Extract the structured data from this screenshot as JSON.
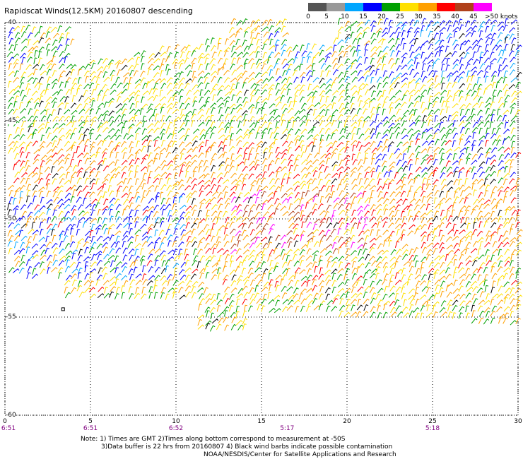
{
  "title": "Rapidscat Winds(12.5KM) 20160807 descending",
  "legend": {
    "labels": [
      "0",
      "5",
      "10",
      "15",
      "20",
      "25",
      "30",
      "35",
      "40",
      "45",
      ">50 knots"
    ],
    "colors": [
      "#555555",
      "#999999",
      "#00a6ff",
      "#0000ff",
      "#00a000",
      "#ffe000",
      "#ffa000",
      "#ff0000",
      "#b0401a",
      "#ff00ff",
      "#8a00b0"
    ]
  },
  "axes": {
    "lon_ticks": [
      "0",
      "5",
      "10",
      "15",
      "20",
      "25",
      "30"
    ],
    "lat_ticks": [
      "-40",
      "-45",
      "-50",
      "-55",
      "-60"
    ],
    "lon_range": [
      0,
      30
    ],
    "lat_range": [
      -40,
      -60
    ],
    "grid": true
  },
  "times": [
    "6:51",
    "6:51",
    "6:52",
    "5:17",
    "5:18"
  ],
  "notes": [
    "Note: 1) Times are GMT 2)Times along bottom correspond to measurement at -50S",
    "3)Data buffer is 22 hrs from 20160807 4) Black wind barbs indicate possible contamination",
    "NOAA/NESDIS/Center for Satellite Applications and Research"
  ]
}
